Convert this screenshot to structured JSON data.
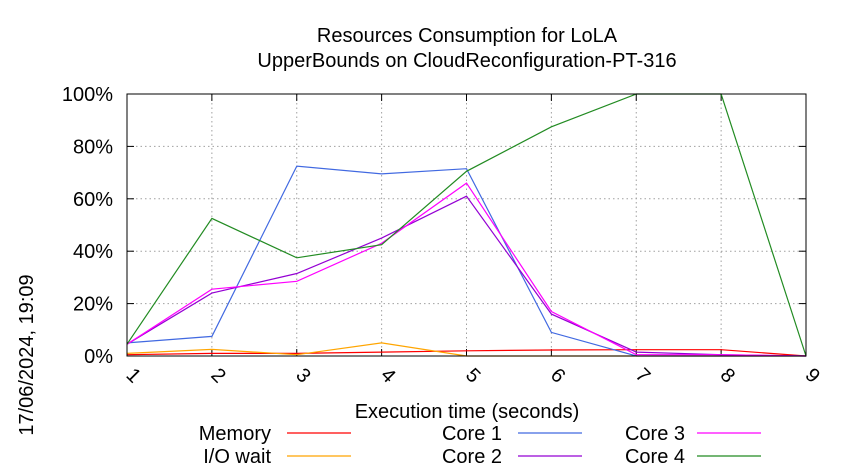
{
  "chart_data": {
    "type": "line",
    "title": "Resources Consumption for LoLA",
    "subtitle": "UpperBounds on CloudReconfiguration-PT-316",
    "xlabel": "Execution time (seconds)",
    "ylabel": "",
    "timestamp": "17/06/2024, 19:09",
    "x": [
      1,
      2,
      3,
      4,
      5,
      6,
      7,
      8,
      9
    ],
    "xlim": [
      1,
      9
    ],
    "ylim": [
      0,
      100
    ],
    "x_ticks": [
      "1",
      "2",
      "3",
      "4",
      "5",
      "6",
      "7",
      "8",
      "9"
    ],
    "y_ticks": [
      "0%",
      "20%",
      "40%",
      "60%",
      "80%",
      "100%"
    ],
    "y_tick_values": [
      0,
      20,
      40,
      60,
      80,
      100
    ],
    "grid": true,
    "legend_position": "bottom",
    "series": [
      {
        "name": "Memory",
        "color": "#ff0000",
        "values": [
          0.5,
          1,
          1,
          1.5,
          2,
          2.3,
          2.4,
          2.4,
          0
        ]
      },
      {
        "name": "I/O wait",
        "color": "#ffa500",
        "values": [
          1,
          2.5,
          0.5,
          5,
          0,
          0,
          0,
          0,
          0
        ]
      },
      {
        "name": "Core 1",
        "color": "#4169e1",
        "values": [
          5,
          7.5,
          72.5,
          69.5,
          71.5,
          9,
          0,
          0,
          0
        ]
      },
      {
        "name": "Core 2",
        "color": "#9400d3",
        "values": [
          4.5,
          24,
          31.5,
          45,
          61,
          16,
          1.5,
          0.5,
          0
        ]
      },
      {
        "name": "Core 3",
        "color": "#ff00ff",
        "values": [
          4.5,
          25.5,
          28.5,
          43,
          66,
          17,
          0.5,
          0.5,
          0
        ]
      },
      {
        "name": "Core 4",
        "color": "#228b22",
        "values": [
          4.5,
          52.5,
          37.5,
          42.5,
          70.5,
          87.5,
          100,
          100,
          0
        ]
      }
    ]
  }
}
